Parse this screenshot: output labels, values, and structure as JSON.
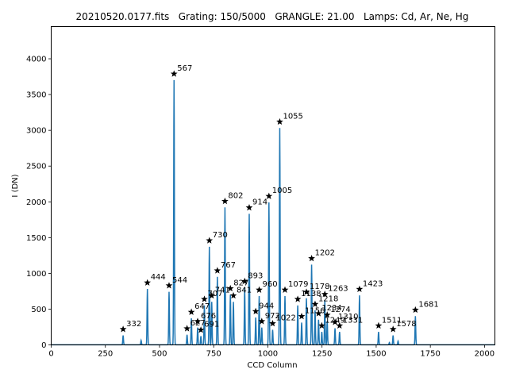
{
  "chart_data": {
    "type": "line",
    "title": "20210520.0177.fits   Grating: 150/5000   GRANGLE: 21.00   Lamps: Cd, Ar, Ne, Hg",
    "xlabel": "CCD Column",
    "ylabel": "I (DN)",
    "xlim": [
      0,
      2048
    ],
    "ylim": [
      0,
      4450
    ],
    "xticks": [
      0,
      250,
      500,
      750,
      1000,
      1250,
      1500,
      1750,
      2000
    ],
    "yticks": [
      0,
      500,
      1000,
      1500,
      2000,
      2500,
      3000,
      3500,
      4000
    ],
    "grid": false,
    "line_color": "#1f77b4",
    "marker_color": "#000000",
    "series": [
      {
        "peaks": [
          {
            "x": 332,
            "y": 130,
            "label": "332"
          },
          {
            "x": 415,
            "y": 60
          },
          {
            "x": 444,
            "y": 780,
            "label": "444"
          },
          {
            "x": 544,
            "y": 740,
            "label": "544"
          },
          {
            "x": 567,
            "y": 3700,
            "label": "567"
          },
          {
            "x": 627,
            "y": 140,
            "label": "627"
          },
          {
            "x": 647,
            "y": 370,
            "label": "647"
          },
          {
            "x": 676,
            "y": 240,
            "label": "676"
          },
          {
            "x": 691,
            "y": 120,
            "label": "691"
          },
          {
            "x": 707,
            "y": 550,
            "label": "707"
          },
          {
            "x": 730,
            "y": 1370,
            "label": "730"
          },
          {
            "x": 741,
            "y": 600,
            "label": "741"
          },
          {
            "x": 767,
            "y": 950,
            "label": "767"
          },
          {
            "x": 802,
            "y": 1920,
            "label": "802"
          },
          {
            "x": 827,
            "y": 700,
            "label": "827"
          },
          {
            "x": 841,
            "y": 600,
            "label": "841"
          },
          {
            "x": 893,
            "y": 800,
            "label": "893"
          },
          {
            "x": 914,
            "y": 1830,
            "label": "914"
          },
          {
            "x": 944,
            "y": 380,
            "label": "944"
          },
          {
            "x": 960,
            "y": 680,
            "label": "960"
          },
          {
            "x": 972,
            "y": 240,
            "label": "972"
          },
          {
            "x": 1005,
            "y": 1990,
            "label": "1005"
          },
          {
            "x": 1022,
            "y": 210,
            "label": "1022"
          },
          {
            "x": 1055,
            "y": 3030,
            "label": "1055"
          },
          {
            "x": 1079,
            "y": 680,
            "label": "1079"
          },
          {
            "x": 1138,
            "y": 550,
            "label": "1138"
          },
          {
            "x": 1156,
            "y": 310,
            "label": "1156"
          },
          {
            "x": 1178,
            "y": 650,
            "label": "1178"
          },
          {
            "x": 1202,
            "y": 1120,
            "label": "1202"
          },
          {
            "x": 1218,
            "y": 480,
            "label": "1218"
          },
          {
            "x": 1234,
            "y": 350,
            "label": "1234"
          },
          {
            "x": 1249,
            "y": 180,
            "label": "1249"
          },
          {
            "x": 1263,
            "y": 620,
            "label": "1263"
          },
          {
            "x": 1274,
            "y": 330,
            "label": "1274"
          },
          {
            "x": 1310,
            "y": 230,
            "label": "1310"
          },
          {
            "x": 1331,
            "y": 180,
            "label": "1331"
          },
          {
            "x": 1423,
            "y": 690,
            "label": "1423"
          },
          {
            "x": 1511,
            "y": 180,
            "label": "1511"
          },
          {
            "x": 1561,
            "y": 30
          },
          {
            "x": 1578,
            "y": 130,
            "label": "1578"
          },
          {
            "x": 1601,
            "y": 50
          },
          {
            "x": 1681,
            "y": 400,
            "label": "1681"
          }
        ]
      }
    ]
  }
}
